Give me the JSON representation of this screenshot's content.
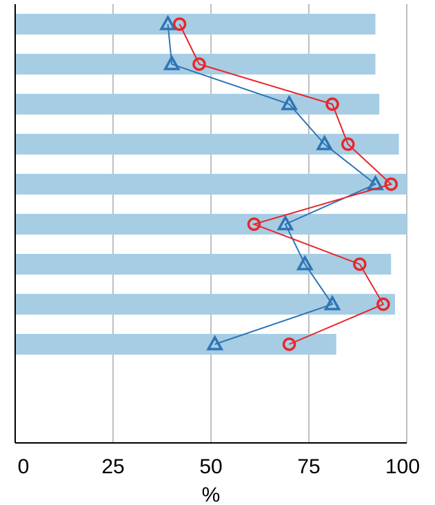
{
  "chart_data": {
    "type": "bar",
    "orientation": "horizontal",
    "xlabel": "%",
    "xlim": [
      0,
      100
    ],
    "xticks": [
      "0",
      "25",
      "50",
      "75",
      "100"
    ],
    "grid": "vertical",
    "bars": [
      92,
      92,
      93,
      98,
      100,
      100,
      96,
      97,
      82
    ],
    "series": [
      {
        "marker": "triangle",
        "color": "#2e75b6",
        "values": [
          39,
          40,
          70,
          79,
          92,
          69,
          74,
          81,
          51
        ]
      },
      {
        "marker": "circle",
        "color": "#e8262a",
        "values": [
          42,
          47,
          81,
          85,
          96,
          61,
          88,
          94,
          70
        ]
      }
    ],
    "colors": {
      "bar": "#a6cde3",
      "grid": "#bfbfbf",
      "axis": "#000000"
    }
  }
}
